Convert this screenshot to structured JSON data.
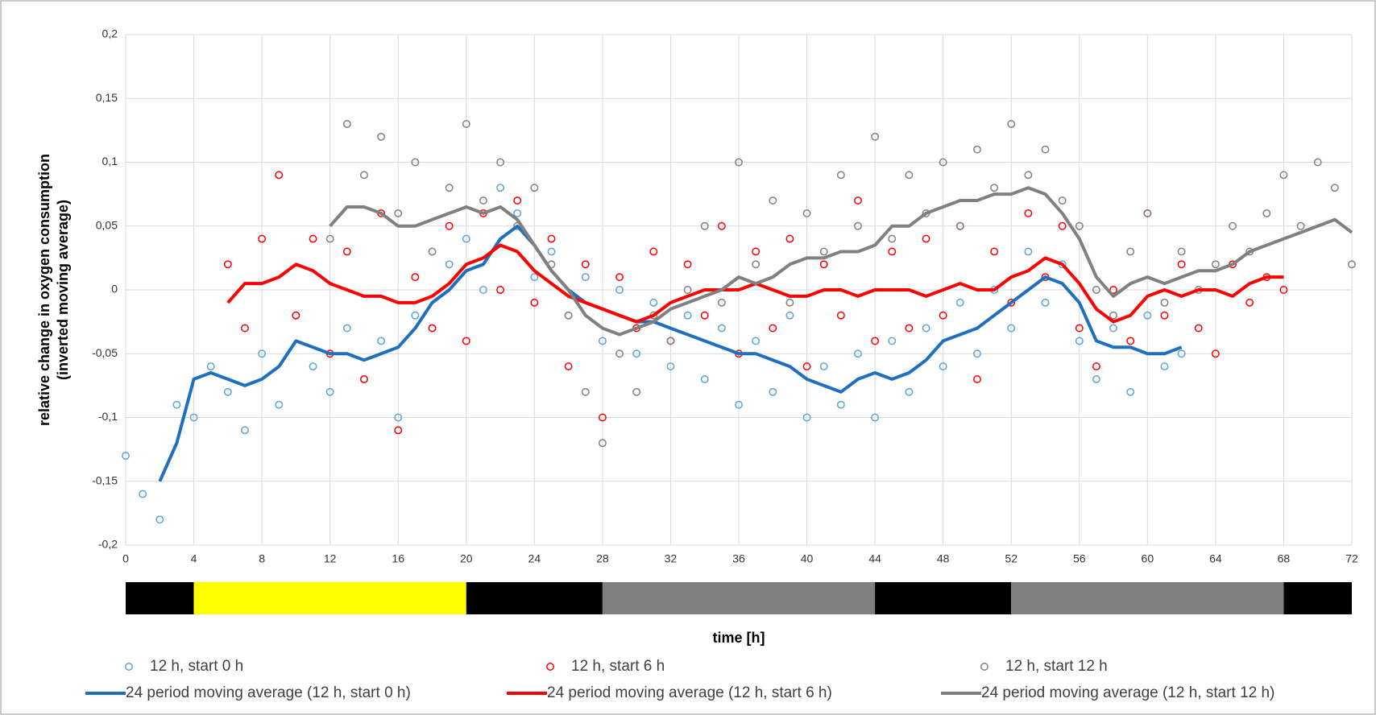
{
  "chart_data": {
    "type": "scatter",
    "y_label": [
      "relative change in oxygen consumption",
      "(inverted moving average)"
    ],
    "x_label": "time [h]",
    "xlim": [
      0,
      72
    ],
    "ylim": [
      -0.2,
      0.2
    ],
    "xticks": [
      0,
      4,
      8,
      12,
      16,
      20,
      24,
      28,
      32,
      36,
      40,
      44,
      48,
      52,
      56,
      60,
      64,
      68,
      72
    ],
    "yticks": [
      {
        "value": -0.2,
        "label": "-0,2"
      },
      {
        "value": -0.15,
        "label": "-0,15"
      },
      {
        "value": -0.1,
        "label": "-0,1"
      },
      {
        "value": -0.05,
        "label": "-0,05"
      },
      0,
      {
        "value": 0.05,
        "label": "0,05"
      },
      {
        "value": 0.1,
        "label": "0,1"
      },
      {
        "value": 0.15,
        "label": "0,15"
      },
      {
        "value": 0.2,
        "label": "0,2"
      }
    ],
    "grid": true,
    "light_phases": [
      {
        "start": 0,
        "end": 4,
        "color": "#000000"
      },
      {
        "start": 4,
        "end": 20,
        "color": "#ffff00"
      },
      {
        "start": 20,
        "end": 28,
        "color": "#000000"
      },
      {
        "start": 28,
        "end": 44,
        "color": "#808080"
      },
      {
        "start": 44,
        "end": 52,
        "color": "#000000"
      },
      {
        "start": 52,
        "end": 68,
        "color": "#808080"
      },
      {
        "start": 68,
        "end": 72,
        "color": "#000000"
      }
    ],
    "series": [
      {
        "name": "12 h, start 0 h",
        "color": "#5ba3d9",
        "mode": "markers",
        "x": [
          0,
          1,
          2,
          3,
          4,
          5,
          6,
          7,
          8,
          9,
          10,
          11,
          12,
          13,
          14,
          15,
          16,
          17,
          18,
          19,
          20,
          21,
          22,
          23,
          24,
          25,
          26,
          27,
          28,
          29,
          30,
          31,
          32,
          33,
          34,
          35,
          36,
          37,
          38,
          39,
          40,
          41,
          42,
          43,
          44,
          45,
          46,
          47,
          48,
          49,
          50,
          51,
          52,
          53,
          54,
          55,
          56,
          57,
          58,
          59,
          60,
          61,
          62
        ],
        "values": [
          -0.13,
          -0.16,
          -0.18,
          -0.09,
          -0.1,
          -0.06,
          -0.08,
          -0.11,
          -0.05,
          -0.09,
          -0.02,
          -0.06,
          -0.08,
          -0.03,
          -0.07,
          -0.04,
          -0.1,
          -0.02,
          -0.03,
          0.02,
          0.04,
          0.0,
          0.08,
          0.06,
          0.01,
          0.03,
          -0.02,
          0.01,
          -0.04,
          0.0,
          -0.05,
          -0.01,
          -0.06,
          -0.02,
          -0.07,
          -0.03,
          -0.09,
          -0.04,
          -0.08,
          -0.02,
          -0.1,
          -0.06,
          -0.09,
          -0.05,
          -0.1,
          -0.04,
          -0.08,
          -0.03,
          -0.06,
          -0.01,
          -0.05,
          0.0,
          -0.03,
          0.03,
          -0.01,
          0.02,
          -0.04,
          -0.07,
          -0.03,
          -0.08,
          -0.02,
          -0.06,
          -0.05
        ]
      },
      {
        "name": "12 h, start 6 h",
        "color": "#ff0000",
        "mode": "markers",
        "x": [
          6,
          7,
          8,
          9,
          10,
          11,
          12,
          13,
          14,
          15,
          16,
          17,
          18,
          19,
          20,
          21,
          22,
          23,
          24,
          25,
          26,
          27,
          28,
          29,
          30,
          31,
          32,
          33,
          34,
          35,
          36,
          37,
          38,
          39,
          40,
          41,
          42,
          43,
          44,
          45,
          46,
          47,
          48,
          49,
          50,
          51,
          52,
          53,
          54,
          55,
          56,
          57,
          58,
          59,
          60,
          61,
          62,
          63,
          64,
          65,
          66,
          67,
          68
        ],
        "values": [
          0.02,
          -0.03,
          0.04,
          0.09,
          -0.02,
          0.04,
          -0.05,
          0.03,
          -0.07,
          0.06,
          -0.11,
          0.01,
          -0.03,
          0.05,
          -0.04,
          0.06,
          0.0,
          0.07,
          -0.01,
          0.04,
          -0.06,
          0.02,
          -0.1,
          0.01,
          -0.03,
          0.03,
          -0.04,
          0.02,
          -0.02,
          0.05,
          -0.05,
          0.03,
          -0.03,
          0.04,
          -0.06,
          0.02,
          -0.02,
          0.07,
          -0.04,
          0.03,
          -0.03,
          0.04,
          -0.02,
          0.05,
          -0.07,
          0.03,
          -0.01,
          0.06,
          0.01,
          0.05,
          -0.03,
          -0.06,
          0.0,
          -0.04,
          0.06,
          -0.02,
          0.02,
          -0.03,
          -0.05,
          0.02,
          -0.01,
          0.01,
          0.0
        ]
      },
      {
        "name": "12 h, start 12 h",
        "color": "#808080",
        "mode": "markers",
        "x": [
          12,
          13,
          14,
          15,
          16,
          17,
          18,
          19,
          20,
          21,
          22,
          23,
          24,
          25,
          26,
          27,
          28,
          29,
          30,
          31,
          32,
          33,
          34,
          35,
          36,
          37,
          38,
          39,
          40,
          41,
          42,
          43,
          44,
          45,
          46,
          47,
          48,
          49,
          50,
          51,
          52,
          53,
          54,
          55,
          56,
          57,
          58,
          59,
          60,
          61,
          62,
          63,
          64,
          65,
          66,
          67,
          68,
          69,
          70,
          71,
          72
        ],
        "values": [
          0.04,
          0.13,
          0.09,
          0.12,
          0.06,
          0.1,
          0.03,
          0.08,
          0.13,
          0.07,
          0.1,
          0.05,
          0.08,
          0.02,
          -0.02,
          -0.08,
          -0.12,
          -0.05,
          -0.08,
          -0.02,
          -0.04,
          0.0,
          0.05,
          -0.01,
          0.1,
          0.02,
          0.07,
          -0.01,
          0.06,
          0.03,
          0.09,
          0.05,
          0.12,
          0.04,
          0.09,
          0.06,
          0.1,
          0.05,
          0.11,
          0.08,
          0.13,
          0.09,
          0.11,
          0.07,
          0.05,
          0.0,
          -0.02,
          0.03,
          0.06,
          -0.01,
          0.03,
          0.0,
          0.02,
          0.05,
          0.03,
          0.06,
          0.09,
          0.05,
          0.1,
          0.08,
          0.02
        ]
      },
      {
        "name": "24 period moving average (12 h, start 0 h)",
        "color": "#1f6fbf",
        "mode": "line",
        "x": [
          2,
          3,
          4,
          5,
          6,
          7,
          8,
          9,
          10,
          11,
          12,
          13,
          14,
          15,
          16,
          17,
          18,
          19,
          20,
          21,
          22,
          23,
          24,
          25,
          26,
          27,
          28,
          29,
          30,
          31,
          32,
          33,
          34,
          35,
          36,
          37,
          38,
          39,
          40,
          41,
          42,
          43,
          44,
          45,
          46,
          47,
          48,
          49,
          50,
          51,
          52,
          53,
          54,
          55,
          56,
          57,
          58,
          59,
          60,
          61,
          62
        ],
        "values": [
          -0.15,
          -0.12,
          -0.07,
          -0.065,
          -0.07,
          -0.075,
          -0.07,
          -0.06,
          -0.04,
          -0.045,
          -0.05,
          -0.05,
          -0.055,
          -0.05,
          -0.045,
          -0.03,
          -0.01,
          0.0,
          0.015,
          0.02,
          0.04,
          0.05,
          0.035,
          0.015,
          0.0,
          -0.01,
          -0.015,
          -0.02,
          -0.025,
          -0.025,
          -0.03,
          -0.035,
          -0.04,
          -0.045,
          -0.05,
          -0.05,
          -0.055,
          -0.06,
          -0.07,
          -0.075,
          -0.08,
          -0.07,
          -0.065,
          -0.07,
          -0.065,
          -0.055,
          -0.04,
          -0.035,
          -0.03,
          -0.02,
          -0.01,
          0.0,
          0.01,
          0.005,
          -0.01,
          -0.04,
          -0.045,
          -0.045,
          -0.05,
          -0.05,
          -0.045
        ]
      },
      {
        "name": "24 period moving average (12 h, start 6 h)",
        "color": "#ff0000",
        "mode": "line",
        "x": [
          6,
          7,
          8,
          9,
          10,
          11,
          12,
          13,
          14,
          15,
          16,
          17,
          18,
          19,
          20,
          21,
          22,
          23,
          24,
          25,
          26,
          27,
          28,
          29,
          30,
          31,
          32,
          33,
          34,
          35,
          36,
          37,
          38,
          39,
          40,
          41,
          42,
          43,
          44,
          45,
          46,
          47,
          48,
          49,
          50,
          51,
          52,
          53,
          54,
          55,
          56,
          57,
          58,
          59,
          60,
          61,
          62,
          63,
          64,
          65,
          66,
          67,
          68
        ],
        "values": [
          -0.01,
          0.005,
          0.005,
          0.01,
          0.02,
          0.015,
          0.005,
          0.0,
          -0.005,
          -0.005,
          -0.01,
          -0.01,
          -0.005,
          0.005,
          0.02,
          0.025,
          0.035,
          0.03,
          0.015,
          0.005,
          -0.005,
          -0.01,
          -0.015,
          -0.02,
          -0.025,
          -0.02,
          -0.01,
          -0.005,
          0.0,
          0.0,
          0.0,
          0.005,
          0.0,
          -0.005,
          -0.005,
          0.0,
          0.0,
          -0.005,
          0.0,
          0.0,
          0.0,
          -0.005,
          0.0,
          0.005,
          0.0,
          0.0,
          0.01,
          0.015,
          0.025,
          0.02,
          0.005,
          -0.015,
          -0.025,
          -0.02,
          -0.005,
          0.0,
          -0.005,
          0.0,
          0.0,
          -0.005,
          0.005,
          0.01,
          0.01
        ]
      },
      {
        "name": "24 period moving average (12 h, start 12 h)",
        "color": "#808080",
        "mode": "line",
        "x": [
          12,
          13,
          14,
          15,
          16,
          17,
          18,
          19,
          20,
          21,
          22,
          23,
          24,
          25,
          26,
          27,
          28,
          29,
          30,
          31,
          32,
          33,
          34,
          35,
          36,
          37,
          38,
          39,
          40,
          41,
          42,
          43,
          44,
          45,
          46,
          47,
          48,
          49,
          50,
          51,
          52,
          53,
          54,
          55,
          56,
          57,
          58,
          59,
          60,
          61,
          62,
          63,
          64,
          65,
          66,
          67,
          68,
          69,
          70,
          71,
          72
        ],
        "values": [
          0.05,
          0.065,
          0.065,
          0.06,
          0.05,
          0.05,
          0.055,
          0.06,
          0.065,
          0.06,
          0.065,
          0.055,
          0.035,
          0.015,
          0.0,
          -0.02,
          -0.03,
          -0.035,
          -0.03,
          -0.025,
          -0.015,
          -0.01,
          -0.005,
          0.0,
          0.01,
          0.005,
          0.01,
          0.02,
          0.025,
          0.025,
          0.03,
          0.03,
          0.035,
          0.05,
          0.05,
          0.06,
          0.065,
          0.07,
          0.07,
          0.075,
          0.075,
          0.08,
          0.075,
          0.06,
          0.04,
          0.01,
          -0.005,
          0.005,
          0.01,
          0.005,
          0.01,
          0.015,
          0.015,
          0.02,
          0.03,
          0.035,
          0.04,
          0.045,
          0.05,
          0.055,
          0.045
        ]
      }
    ]
  }
}
